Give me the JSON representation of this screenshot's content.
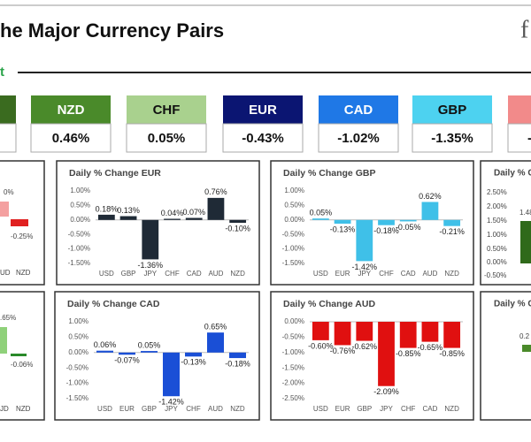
{
  "header": {
    "title": "he Major Currency Pairs",
    "logo": "f",
    "section": "t",
    "partial_value": "-"
  },
  "tiles": [
    {
      "name": "NZD",
      "value": "0.46%",
      "color": "#4a8a2a",
      "text_color": "#ffffff"
    },
    {
      "name": "CHF",
      "value": "0.05%",
      "color": "#a9d18e",
      "text_color": "#111111"
    },
    {
      "name": "EUR",
      "value": "-0.43%",
      "color": "#0b1572",
      "text_color": "#ffffff"
    },
    {
      "name": "CAD",
      "value": "-1.02%",
      "color": "#1f78e6",
      "text_color": "#ffffff"
    },
    {
      "name": "GBP",
      "value": "-1.35%",
      "color": "#4dd2f0",
      "text_color": "#111111"
    }
  ],
  "chart_data": [
    {
      "type": "bar",
      "title": "Daily % Change EUR",
      "color": "#1f2a36",
      "categories": [
        "USD",
        "GBP",
        "JPY",
        "CHF",
        "CAD",
        "AUD",
        "NZD"
      ],
      "values": [
        0.18,
        0.13,
        -1.36,
        0.04,
        0.07,
        0.76,
        -0.1
      ],
      "value_labels": [
        "0.18%",
        "0.13%",
        "-1.36%",
        "0.04%",
        "0.07%",
        "0.76%",
        "-0.10%"
      ],
      "ylim": [
        -1.5,
        1.0
      ],
      "yticks": [
        {
          "value": 1,
          "label": "1.00%"
        },
        {
          "value": 0.5,
          "label": "0.50%"
        },
        {
          "value": 0,
          "label": "0.00%"
        },
        {
          "value": -0.5,
          "label": "-0.50%"
        },
        {
          "value": -1,
          "label": "-1.00%"
        },
        {
          "value": -1.5,
          "label": "-1.50%"
        }
      ]
    },
    {
      "type": "bar",
      "title": "Daily % Change GBP",
      "color": "#3fc0e8",
      "categories": [
        "USD",
        "EUR",
        "JPY",
        "CHF",
        "CAD",
        "AUD",
        "NZD"
      ],
      "values": [
        0.05,
        -0.13,
        -1.42,
        -0.18,
        -0.05,
        0.62,
        -0.21
      ],
      "value_labels": [
        "0.05%",
        "-0.13%",
        "-1.42%",
        "-0.18%",
        "-0.05%",
        "0.62%",
        "-0.21%"
      ],
      "ylim": [
        -1.5,
        1.0
      ],
      "yticks": [
        {
          "value": 1,
          "label": "1.00%"
        },
        {
          "value": 0.5,
          "label": "0.50%"
        },
        {
          "value": 0,
          "label": "0.00%"
        },
        {
          "value": -0.5,
          "label": "-0.50%"
        },
        {
          "value": -1,
          "label": "-1.00%"
        },
        {
          "value": -1.5,
          "label": "-1.50%"
        }
      ]
    },
    {
      "type": "bar",
      "title": "Daily % Change CAD",
      "color": "#1a4fd6",
      "categories": [
        "USD",
        "EUR",
        "GBP",
        "JPY",
        "CHF",
        "AUD",
        "NZD"
      ],
      "values": [
        0.06,
        -0.07,
        0.05,
        -1.42,
        -0.13,
        0.65,
        -0.18
      ],
      "value_labels": [
        "0.06%",
        "-0.07%",
        "0.05%",
        "-1.42%",
        "-0.13%",
        "0.65%",
        "-0.18%"
      ],
      "ylim": [
        -1.5,
        1.0
      ],
      "yticks": [
        {
          "value": 1,
          "label": "1.00%"
        },
        {
          "value": 0.5,
          "label": "0.50%"
        },
        {
          "value": 0,
          "label": "0.00%"
        },
        {
          "value": -0.5,
          "label": "-0.50%"
        },
        {
          "value": -1,
          "label": "-1.00%"
        },
        {
          "value": -1.5,
          "label": "-1.50%"
        }
      ]
    },
    {
      "type": "bar",
      "title": "Daily % Change AUD",
      "color": "#e01010",
      "categories": [
        "USD",
        "EUR",
        "GBP",
        "JPY",
        "CHF",
        "CAD",
        "NZD"
      ],
      "values": [
        -0.6,
        -0.76,
        -0.62,
        -2.09,
        -0.85,
        -0.65,
        -0.85
      ],
      "value_labels": [
        "-0.60%",
        "-0.76%",
        "-0.62%",
        "-2.09%",
        "-0.85%",
        "-0.65%",
        "-0.85%"
      ],
      "ylim": [
        -2.5,
        0
      ],
      "yticks": [
        {
          "value": 0,
          "label": "0.00%"
        },
        {
          "value": -0.5,
          "label": "-0.50%"
        },
        {
          "value": -1,
          "label": "-1.00%"
        },
        {
          "value": -1.5,
          "label": "-1.50%"
        },
        {
          "value": -2,
          "label": "-2.00%"
        },
        {
          "value": -2.5,
          "label": "-2.50%"
        }
      ]
    }
  ],
  "partial_panels": [
    {
      "texts": [
        "0%",
        "-0.25%",
        "UD",
        "NZD"
      ]
    },
    {
      "texts": [
        ".65%",
        "-0.06%",
        "JD",
        "NZD"
      ]
    },
    {
      "texts": [
        "Daily % C",
        "2.50%",
        "2.00%",
        "1.50%",
        "1.00%",
        "0.50%",
        "0.00%",
        "-0.50%",
        "1.48"
      ]
    },
    {
      "texts": [
        "Daily % C",
        "0.2"
      ]
    }
  ]
}
